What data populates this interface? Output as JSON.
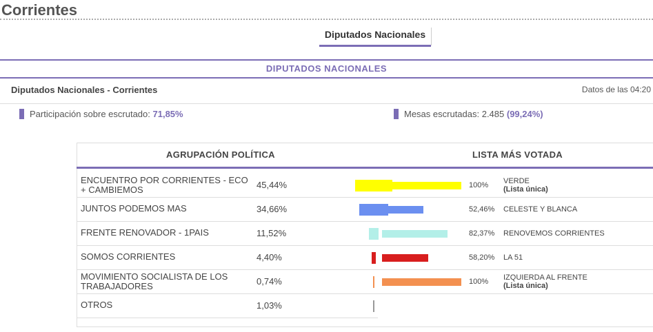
{
  "page": {
    "title": "Corrientes"
  },
  "tabs": [
    {
      "label": "Diputados Nacionales"
    }
  ],
  "section": {
    "title": "DIPUTADOS NACIONALES"
  },
  "subheader": {
    "title": "Diputados Nacionales - Corrientes",
    "timestamp": "Datos de las 04:20"
  },
  "stats": {
    "participation_label": "Participación sobre escrutado:",
    "participation_value": "71,85%",
    "tables_label": "Mesas escrutadas: 2.485",
    "tables_value": "(99,24%)"
  },
  "table": {
    "headers": [
      "AGRUPACIÓN POLÍTICA",
      "LISTA MÁS VOTADA"
    ],
    "rows": [
      {
        "party": "ENCUENTRO POR CORRIENTES - ECO + CAMBIEMOS",
        "pct": "45,44%",
        "share": 45.44,
        "color": "#ffff00",
        "list_pct": "100%",
        "list_share": 100,
        "list_name": "VERDE",
        "list_note": "(Lista única)"
      },
      {
        "party": "JUNTOS PODEMOS MAS",
        "pct": "34,66%",
        "share": 34.66,
        "color": "#6b8ff0",
        "list_pct": "52,46%",
        "list_share": 52.46,
        "list_name": "CELESTE Y BLANCA",
        "list_note": ""
      },
      {
        "party": "FRENTE RENOVADOR - 1PAIS",
        "pct": "11,52%",
        "share": 11.52,
        "color": "#b3efe8",
        "list_pct": "82,37%",
        "list_share": 82.37,
        "list_name": "RENOVEMOS CORRIENTES",
        "list_note": ""
      },
      {
        "party": "SOMOS CORRIENTES",
        "pct": "4,40%",
        "share": 4.4,
        "color": "#d81e1e",
        "list_pct": "58,20%",
        "list_share": 58.2,
        "list_name": "LA 51",
        "list_note": ""
      },
      {
        "party": "MOVIMIENTO SOCIALISTA DE LOS TRABAJADORES",
        "pct": "0,74%",
        "share": 0.74,
        "color": "#f39050",
        "list_pct": "100%",
        "list_share": 100,
        "list_name": "IZQUIERDA AL FRENTE",
        "list_note": "(Lista única)"
      },
      {
        "party": "OTROS",
        "pct": "1,03%",
        "share": 1.03,
        "color": "#999999",
        "list_pct": "",
        "list_share": null,
        "list_name": "",
        "list_note": ""
      }
    ]
  }
}
